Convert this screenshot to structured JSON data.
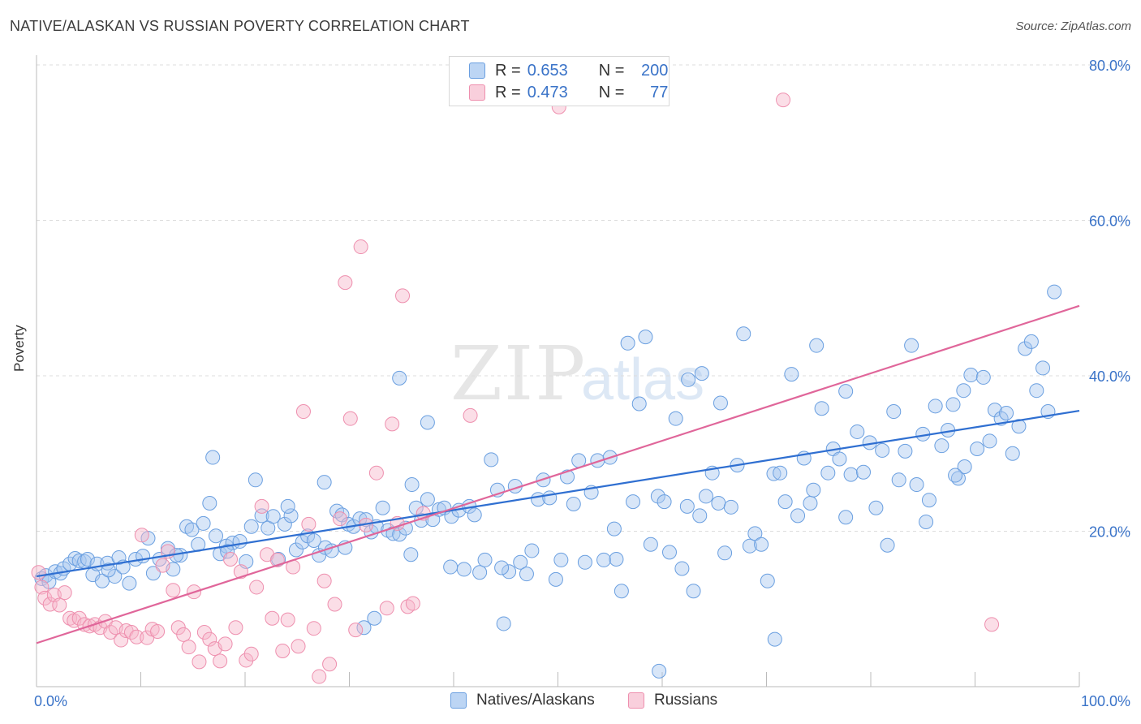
{
  "header": {
    "title": "NATIVE/ALASKAN VS RUSSIAN POVERTY CORRELATION CHART",
    "source": "Source: ZipAtlas.com"
  },
  "watermark": {
    "zip": "ZIP",
    "atlas": "atlas"
  },
  "legend_top": {
    "rows": [
      {
        "r_label": "R =",
        "r_value": "0.653",
        "n_label": "N =",
        "n_value": "200",
        "color": "#a8c8f0"
      },
      {
        "r_label": "R =",
        "r_value": "0.473",
        "n_label": "N =",
        "n_value": "77",
        "color": "#f6b6ca"
      }
    ]
  },
  "legend_bottom": {
    "items": [
      "Natives/Alaskans",
      "Russians"
    ]
  },
  "colors": {
    "blue_fill": "#a8c8f0",
    "blue_stroke": "#6a9fe0",
    "blue_line": "#2f6fd1",
    "pink_fill": "#f6b6ca",
    "pink_stroke": "#ee8fae",
    "pink_line": "#e0669a",
    "grid": "#dddddd",
    "axis_tick_text": "#3a73c8"
  },
  "chart_data": {
    "type": "scatter",
    "title": "NATIVE/ALASKAN VS RUSSIAN POVERTY CORRELATION CHART",
    "xlabel": "",
    "ylabel": "Poverty",
    "xlim": [
      0,
      100
    ],
    "ylim": [
      0,
      80
    ],
    "x_tick_labels": [
      "0.0%",
      "100.0%"
    ],
    "y_ticks": [
      20,
      40,
      60,
      80
    ],
    "y_tick_labels": [
      "20.0%",
      "40.0%",
      "60.0%",
      "80.0%"
    ],
    "grid": true,
    "legend_placement": "bottom",
    "series": [
      {
        "name": "Natives/Alaskans",
        "color": "#a8c8f0",
        "r": 0.653,
        "n": 200,
        "trend": [
          [
            0,
            14.2
          ],
          [
            100,
            35.5
          ]
        ],
        "points": [
          [
            0.5,
            13.9
          ],
          [
            0.9,
            14.3
          ],
          [
            1.2,
            13.5
          ],
          [
            1.8,
            14.8
          ],
          [
            2.3,
            14.6
          ],
          [
            2.6,
            15.2
          ],
          [
            3.2,
            15.8
          ],
          [
            3.7,
            16.5
          ],
          [
            4.1,
            16.2
          ],
          [
            4.6,
            16.1
          ],
          [
            4.9,
            16.4
          ],
          [
            5.4,
            14.4
          ],
          [
            5.8,
            15.8
          ],
          [
            6.3,
            13.6
          ],
          [
            6.8,
            15.9
          ],
          [
            7.5,
            14.2
          ],
          [
            7.9,
            16.6
          ],
          [
            8.3,
            15.4
          ],
          [
            8.9,
            13.3
          ],
          [
            9.5,
            16.4
          ],
          [
            10.2,
            16.8
          ],
          [
            10.7,
            19.1
          ],
          [
            11.2,
            14.6
          ],
          [
            11.8,
            16.4
          ],
          [
            12.6,
            17.8
          ],
          [
            13.1,
            15.1
          ],
          [
            13.8,
            16.9
          ],
          [
            14.4,
            20.6
          ],
          [
            14.9,
            20.2
          ],
          [
            15.5,
            18.3
          ],
          [
            16.0,
            21.0
          ],
          [
            16.6,
            23.6
          ],
          [
            17.2,
            19.4
          ],
          [
            17.6,
            17.1
          ],
          [
            18.2,
            18.1
          ],
          [
            18.8,
            18.5
          ],
          [
            19.5,
            18.7
          ],
          [
            20.1,
            16.1
          ],
          [
            20.6,
            20.6
          ],
          [
            21.0,
            26.6
          ],
          [
            21.6,
            22.0
          ],
          [
            22.2,
            20.4
          ],
          [
            22.7,
            21.9
          ],
          [
            23.2,
            16.4
          ],
          [
            23.8,
            20.9
          ],
          [
            24.4,
            22.0
          ],
          [
            24.9,
            17.6
          ],
          [
            25.5,
            18.6
          ],
          [
            26.0,
            19.4
          ],
          [
            26.6,
            18.8
          ],
          [
            27.1,
            16.9
          ],
          [
            27.7,
            17.9
          ],
          [
            28.3,
            17.5
          ],
          [
            28.8,
            22.6
          ],
          [
            29.3,
            22.1
          ],
          [
            29.9,
            20.9
          ],
          [
            30.4,
            20.6
          ],
          [
            31.0,
            21.6
          ],
          [
            31.6,
            21.5
          ],
          [
            32.1,
            19.9
          ],
          [
            32.6,
            20.6
          ],
          [
            33.2,
            23.0
          ],
          [
            33.7,
            20.1
          ],
          [
            34.2,
            19.7
          ],
          [
            34.8,
            19.6
          ],
          [
            35.4,
            20.4
          ],
          [
            35.9,
            17.0
          ],
          [
            36.4,
            23.0
          ],
          [
            36.9,
            21.4
          ],
          [
            37.5,
            24.1
          ],
          [
            38.0,
            21.5
          ],
          [
            38.6,
            22.8
          ],
          [
            39.1,
            23.0
          ],
          [
            39.8,
            21.9
          ],
          [
            40.5,
            22.7
          ],
          [
            41.0,
            15.1
          ],
          [
            41.5,
            23.2
          ],
          [
            42.0,
            22.1
          ],
          [
            42.5,
            14.7
          ],
          [
            43.0,
            16.3
          ],
          [
            43.6,
            29.2
          ],
          [
            44.2,
            25.3
          ],
          [
            44.8,
            8.1
          ],
          [
            45.3,
            14.8
          ],
          [
            45.9,
            25.8
          ],
          [
            46.4,
            16.0
          ],
          [
            47.0,
            14.5
          ],
          [
            47.5,
            17.5
          ],
          [
            48.1,
            24.1
          ],
          [
            48.6,
            26.6
          ],
          [
            49.2,
            24.3
          ],
          [
            49.8,
            13.8
          ],
          [
            50.3,
            16.3
          ],
          [
            50.9,
            27.0
          ],
          [
            51.5,
            23.5
          ],
          [
            52.0,
            29.1
          ],
          [
            52.6,
            16.0
          ],
          [
            53.2,
            25.0
          ],
          [
            53.8,
            29.1
          ],
          [
            54.4,
            16.3
          ],
          [
            55.0,
            29.5
          ],
          [
            55.6,
            16.4
          ],
          [
            56.1,
            12.3
          ],
          [
            56.7,
            44.2
          ],
          [
            57.2,
            23.8
          ],
          [
            57.8,
            36.4
          ],
          [
            58.4,
            45.0
          ],
          [
            58.9,
            18.3
          ],
          [
            59.6,
            24.5
          ],
          [
            60.2,
            23.8
          ],
          [
            60.7,
            17.3
          ],
          [
            61.3,
            34.5
          ],
          [
            61.9,
            15.2
          ],
          [
            62.5,
            39.5
          ],
          [
            63.0,
            12.3
          ],
          [
            63.6,
            22.0
          ],
          [
            64.2,
            24.5
          ],
          [
            64.8,
            27.5
          ],
          [
            65.4,
            23.6
          ],
          [
            66.0,
            17.2
          ],
          [
            66.6,
            23.1
          ],
          [
            67.2,
            28.5
          ],
          [
            67.8,
            45.4
          ],
          [
            68.4,
            18.1
          ],
          [
            68.9,
            19.7
          ],
          [
            69.5,
            18.3
          ],
          [
            70.1,
            13.6
          ],
          [
            70.7,
            27.4
          ],
          [
            71.3,
            27.5
          ],
          [
            71.8,
            23.8
          ],
          [
            72.4,
            40.2
          ],
          [
            73.0,
            22.0
          ],
          [
            73.6,
            29.4
          ],
          [
            74.2,
            23.6
          ],
          [
            74.8,
            43.9
          ],
          [
            75.3,
            35.8
          ],
          [
            75.9,
            27.5
          ],
          [
            76.4,
            30.6
          ],
          [
            77.0,
            29.3
          ],
          [
            77.6,
            38.0
          ],
          [
            78.1,
            27.3
          ],
          [
            78.7,
            32.8
          ],
          [
            79.3,
            27.6
          ],
          [
            79.9,
            31.4
          ],
          [
            80.5,
            23.0
          ],
          [
            81.1,
            30.4
          ],
          [
            81.6,
            18.2
          ],
          [
            82.2,
            35.4
          ],
          [
            82.7,
            26.6
          ],
          [
            83.3,
            30.3
          ],
          [
            83.9,
            43.9
          ],
          [
            84.4,
            26.0
          ],
          [
            85.0,
            32.5
          ],
          [
            85.6,
            24.0
          ],
          [
            86.2,
            36.1
          ],
          [
            86.8,
            31.0
          ],
          [
            87.4,
            33.0
          ],
          [
            87.9,
            36.3
          ],
          [
            88.4,
            26.8
          ],
          [
            89.0,
            28.3
          ],
          [
            89.6,
            40.1
          ],
          [
            90.2,
            30.6
          ],
          [
            90.8,
            39.8
          ],
          [
            91.4,
            31.6
          ],
          [
            91.9,
            35.6
          ],
          [
            92.5,
            34.5
          ],
          [
            93.0,
            35.2
          ],
          [
            93.6,
            30.0
          ],
          [
            94.2,
            33.5
          ],
          [
            94.8,
            43.5
          ],
          [
            95.4,
            44.4
          ],
          [
            95.9,
            38.1
          ],
          [
            96.5,
            41.0
          ],
          [
            97.0,
            35.4
          ],
          [
            97.6,
            50.8
          ],
          [
            6.9,
            15.0
          ],
          [
            16.9,
            29.5
          ],
          [
            32.4,
            8.8
          ],
          [
            59.7,
            2.0
          ],
          [
            70.8,
            6.1
          ],
          [
            27.6,
            26.3
          ],
          [
            29.6,
            17.9
          ],
          [
            39.7,
            15.4
          ],
          [
            44.6,
            15.3
          ],
          [
            55.4,
            20.3
          ],
          [
            62.4,
            23.2
          ],
          [
            63.8,
            40.3
          ],
          [
            65.6,
            36.5
          ],
          [
            74.5,
            25.3
          ],
          [
            77.6,
            21.8
          ],
          [
            85.3,
            21.2
          ],
          [
            88.9,
            38.1
          ],
          [
            31.4,
            7.6
          ],
          [
            34.8,
            39.7
          ],
          [
            24.1,
            23.2
          ],
          [
            18.3,
            17.4
          ],
          [
            13.4,
            16.9
          ],
          [
            37.5,
            34.0
          ],
          [
            36.0,
            26.0
          ],
          [
            88.1,
            27.2
          ]
        ]
      },
      {
        "name": "Russians",
        "color": "#f6b6ca",
        "r": 0.473,
        "n": 77,
        "trend": [
          [
            0,
            5.6
          ],
          [
            100,
            49.0
          ]
        ],
        "points": [
          [
            0.2,
            14.7
          ],
          [
            0.5,
            12.8
          ],
          [
            0.8,
            11.4
          ],
          [
            1.3,
            10.6
          ],
          [
            1.7,
            11.8
          ],
          [
            2.2,
            10.5
          ],
          [
            2.7,
            12.1
          ],
          [
            3.2,
            8.8
          ],
          [
            3.6,
            8.5
          ],
          [
            4.1,
            8.8
          ],
          [
            4.6,
            8.0
          ],
          [
            5.1,
            7.8
          ],
          [
            5.6,
            8.0
          ],
          [
            6.1,
            7.6
          ],
          [
            6.6,
            8.4
          ],
          [
            7.1,
            7.0
          ],
          [
            7.6,
            7.6
          ],
          [
            8.1,
            6.0
          ],
          [
            8.6,
            7.2
          ],
          [
            9.1,
            7.0
          ],
          [
            9.6,
            6.4
          ],
          [
            10.1,
            19.5
          ],
          [
            10.6,
            6.3
          ],
          [
            11.1,
            7.4
          ],
          [
            11.6,
            7.1
          ],
          [
            12.1,
            15.6
          ],
          [
            12.6,
            17.4
          ],
          [
            13.1,
            12.4
          ],
          [
            13.6,
            7.6
          ],
          [
            14.1,
            6.7
          ],
          [
            14.6,
            5.1
          ],
          [
            15.1,
            12.2
          ],
          [
            15.6,
            3.2
          ],
          [
            16.1,
            7.0
          ],
          [
            16.6,
            6.1
          ],
          [
            17.1,
            4.9
          ],
          [
            17.6,
            3.3
          ],
          [
            18.1,
            5.5
          ],
          [
            18.6,
            16.4
          ],
          [
            19.1,
            7.6
          ],
          [
            19.6,
            14.8
          ],
          [
            20.1,
            3.4
          ],
          [
            20.6,
            4.2
          ],
          [
            21.1,
            12.8
          ],
          [
            21.6,
            23.2
          ],
          [
            22.1,
            17.0
          ],
          [
            22.6,
            8.8
          ],
          [
            23.1,
            16.3
          ],
          [
            23.6,
            4.6
          ],
          [
            24.1,
            8.6
          ],
          [
            24.6,
            15.4
          ],
          [
            25.1,
            5.2
          ],
          [
            25.6,
            35.4
          ],
          [
            26.1,
            20.9
          ],
          [
            26.6,
            7.5
          ],
          [
            27.1,
            1.3
          ],
          [
            27.6,
            13.6
          ],
          [
            28.1,
            2.9
          ],
          [
            28.6,
            10.6
          ],
          [
            29.1,
            21.6
          ],
          [
            29.6,
            52.0
          ],
          [
            30.1,
            34.5
          ],
          [
            30.6,
            7.3
          ],
          [
            31.1,
            56.6
          ],
          [
            31.6,
            20.8
          ],
          [
            32.6,
            27.5
          ],
          [
            33.6,
            10.1
          ],
          [
            34.1,
            33.8
          ],
          [
            34.6,
            21.0
          ],
          [
            35.1,
            50.3
          ],
          [
            35.6,
            10.3
          ],
          [
            36.1,
            10.7
          ],
          [
            37.1,
            22.3
          ],
          [
            41.6,
            34.9
          ],
          [
            50.1,
            74.6
          ],
          [
            71.6,
            75.5
          ],
          [
            91.6,
            8.0
          ]
        ]
      }
    ]
  }
}
